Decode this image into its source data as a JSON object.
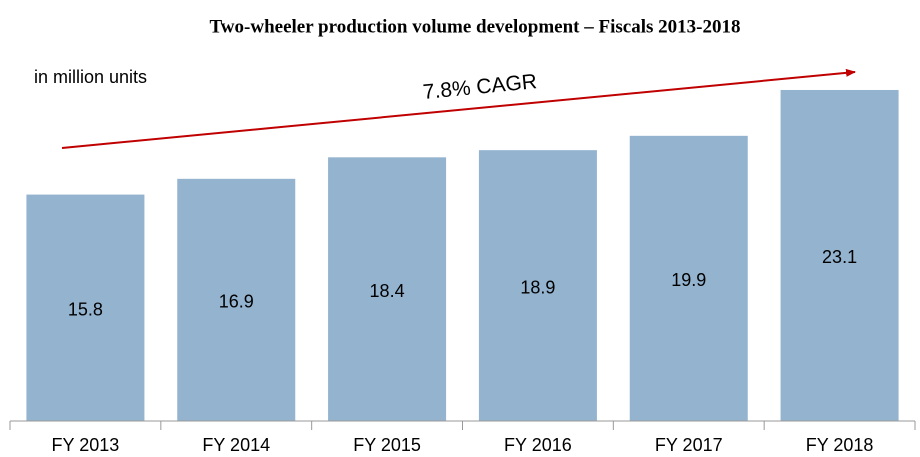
{
  "chart_data": {
    "type": "bar",
    "title": "Two-wheeler production volume development – Fiscals 2013-2018",
    "y_label": "in million units",
    "annotation": "7.8% CAGR",
    "categories": [
      "FY 2013",
      "FY 2014",
      "FY 2015",
      "FY 2016",
      "FY 2017",
      "FY 2018"
    ],
    "values": [
      15.8,
      16.9,
      18.4,
      18.9,
      19.9,
      23.1
    ],
    "color": "#93b3cf"
  }
}
